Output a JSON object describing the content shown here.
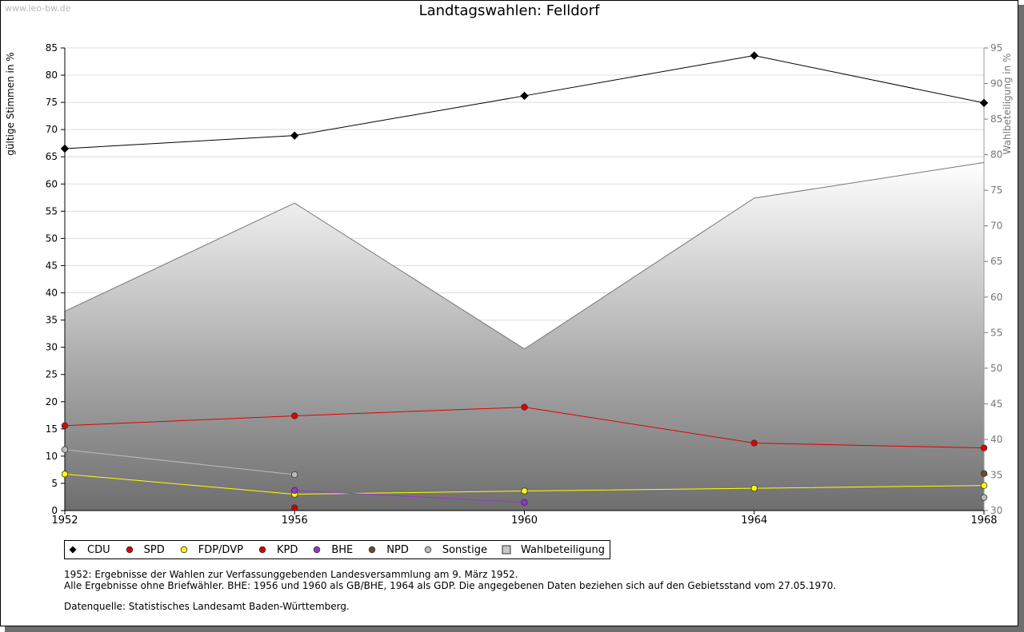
{
  "watermark": "www.leo-bw.de",
  "chart_data": {
    "type": "line",
    "title": "Landtagswahlen: Felldorf",
    "ylabel": "gültige Stimmen in %",
    "y2label": "Wahlbeteiligung in %",
    "x": [
      1952,
      1956,
      1960,
      1964,
      1968
    ],
    "ylim": [
      0,
      85
    ],
    "y2lim": [
      30,
      95
    ],
    "yticks": [
      0,
      5,
      10,
      15,
      20,
      25,
      30,
      35,
      40,
      45,
      50,
      55,
      60,
      65,
      70,
      75,
      80,
      85
    ],
    "y2ticks": [
      30,
      35,
      40,
      45,
      50,
      55,
      60,
      65,
      70,
      75,
      80,
      85,
      90,
      95
    ],
    "grid": true,
    "legend_position": "bottom-left",
    "series": [
      {
        "name": "CDU",
        "color": "#000000",
        "axis": "left",
        "values": [
          66.5,
          68.9,
          76.2,
          83.6,
          74.9
        ]
      },
      {
        "name": "SPD",
        "color": "#e00000",
        "axis": "left",
        "values": [
          15.6,
          17.4,
          19.0,
          12.4,
          11.5
        ]
      },
      {
        "name": "FDP/DVP",
        "color": "#ffff00",
        "axis": "left",
        "values": [
          6.7,
          3.0,
          3.6,
          4.1,
          4.6
        ]
      },
      {
        "name": "KPD",
        "color": "#cc0000",
        "axis": "left",
        "values": [
          null,
          0.5,
          null,
          null,
          null
        ]
      },
      {
        "name": "BHE",
        "color": "#9933cc",
        "axis": "left",
        "values": [
          null,
          3.7,
          1.5,
          null,
          null
        ]
      },
      {
        "name": "NPD",
        "color": "#6b4a2e",
        "axis": "left",
        "values": [
          null,
          null,
          null,
          null,
          6.8
        ]
      },
      {
        "name": "Sonstige",
        "color": "#bbbbbb",
        "axis": "left",
        "values": [
          11.2,
          6.6,
          null,
          null,
          2.4
        ]
      },
      {
        "name": "Wahlbeteiligung",
        "color": "#999999",
        "axis": "right",
        "type": "area",
        "values": [
          58.0,
          73.2,
          52.7,
          73.9,
          78.9
        ]
      }
    ]
  },
  "legend": [
    "CDU",
    "SPD",
    "FDP/DVP",
    "KPD",
    "BHE",
    "NPD",
    "Sonstige",
    "Wahlbeteiligung"
  ],
  "notes": {
    "line1": "1952: Ergebnisse der Wahlen zur Verfassunggebenden Landesversammlung am 9. März 1952.",
    "line2": "Alle Ergebnisse ohne Briefwähler. BHE: 1956 und 1960 als GB/BHE, 1964 als GDP. Die angegebenen Daten beziehen sich auf den Gebietsstand vom 27.05.1970.",
    "source": "Datenquelle: Statistisches Landesamt Baden-Württemberg."
  }
}
